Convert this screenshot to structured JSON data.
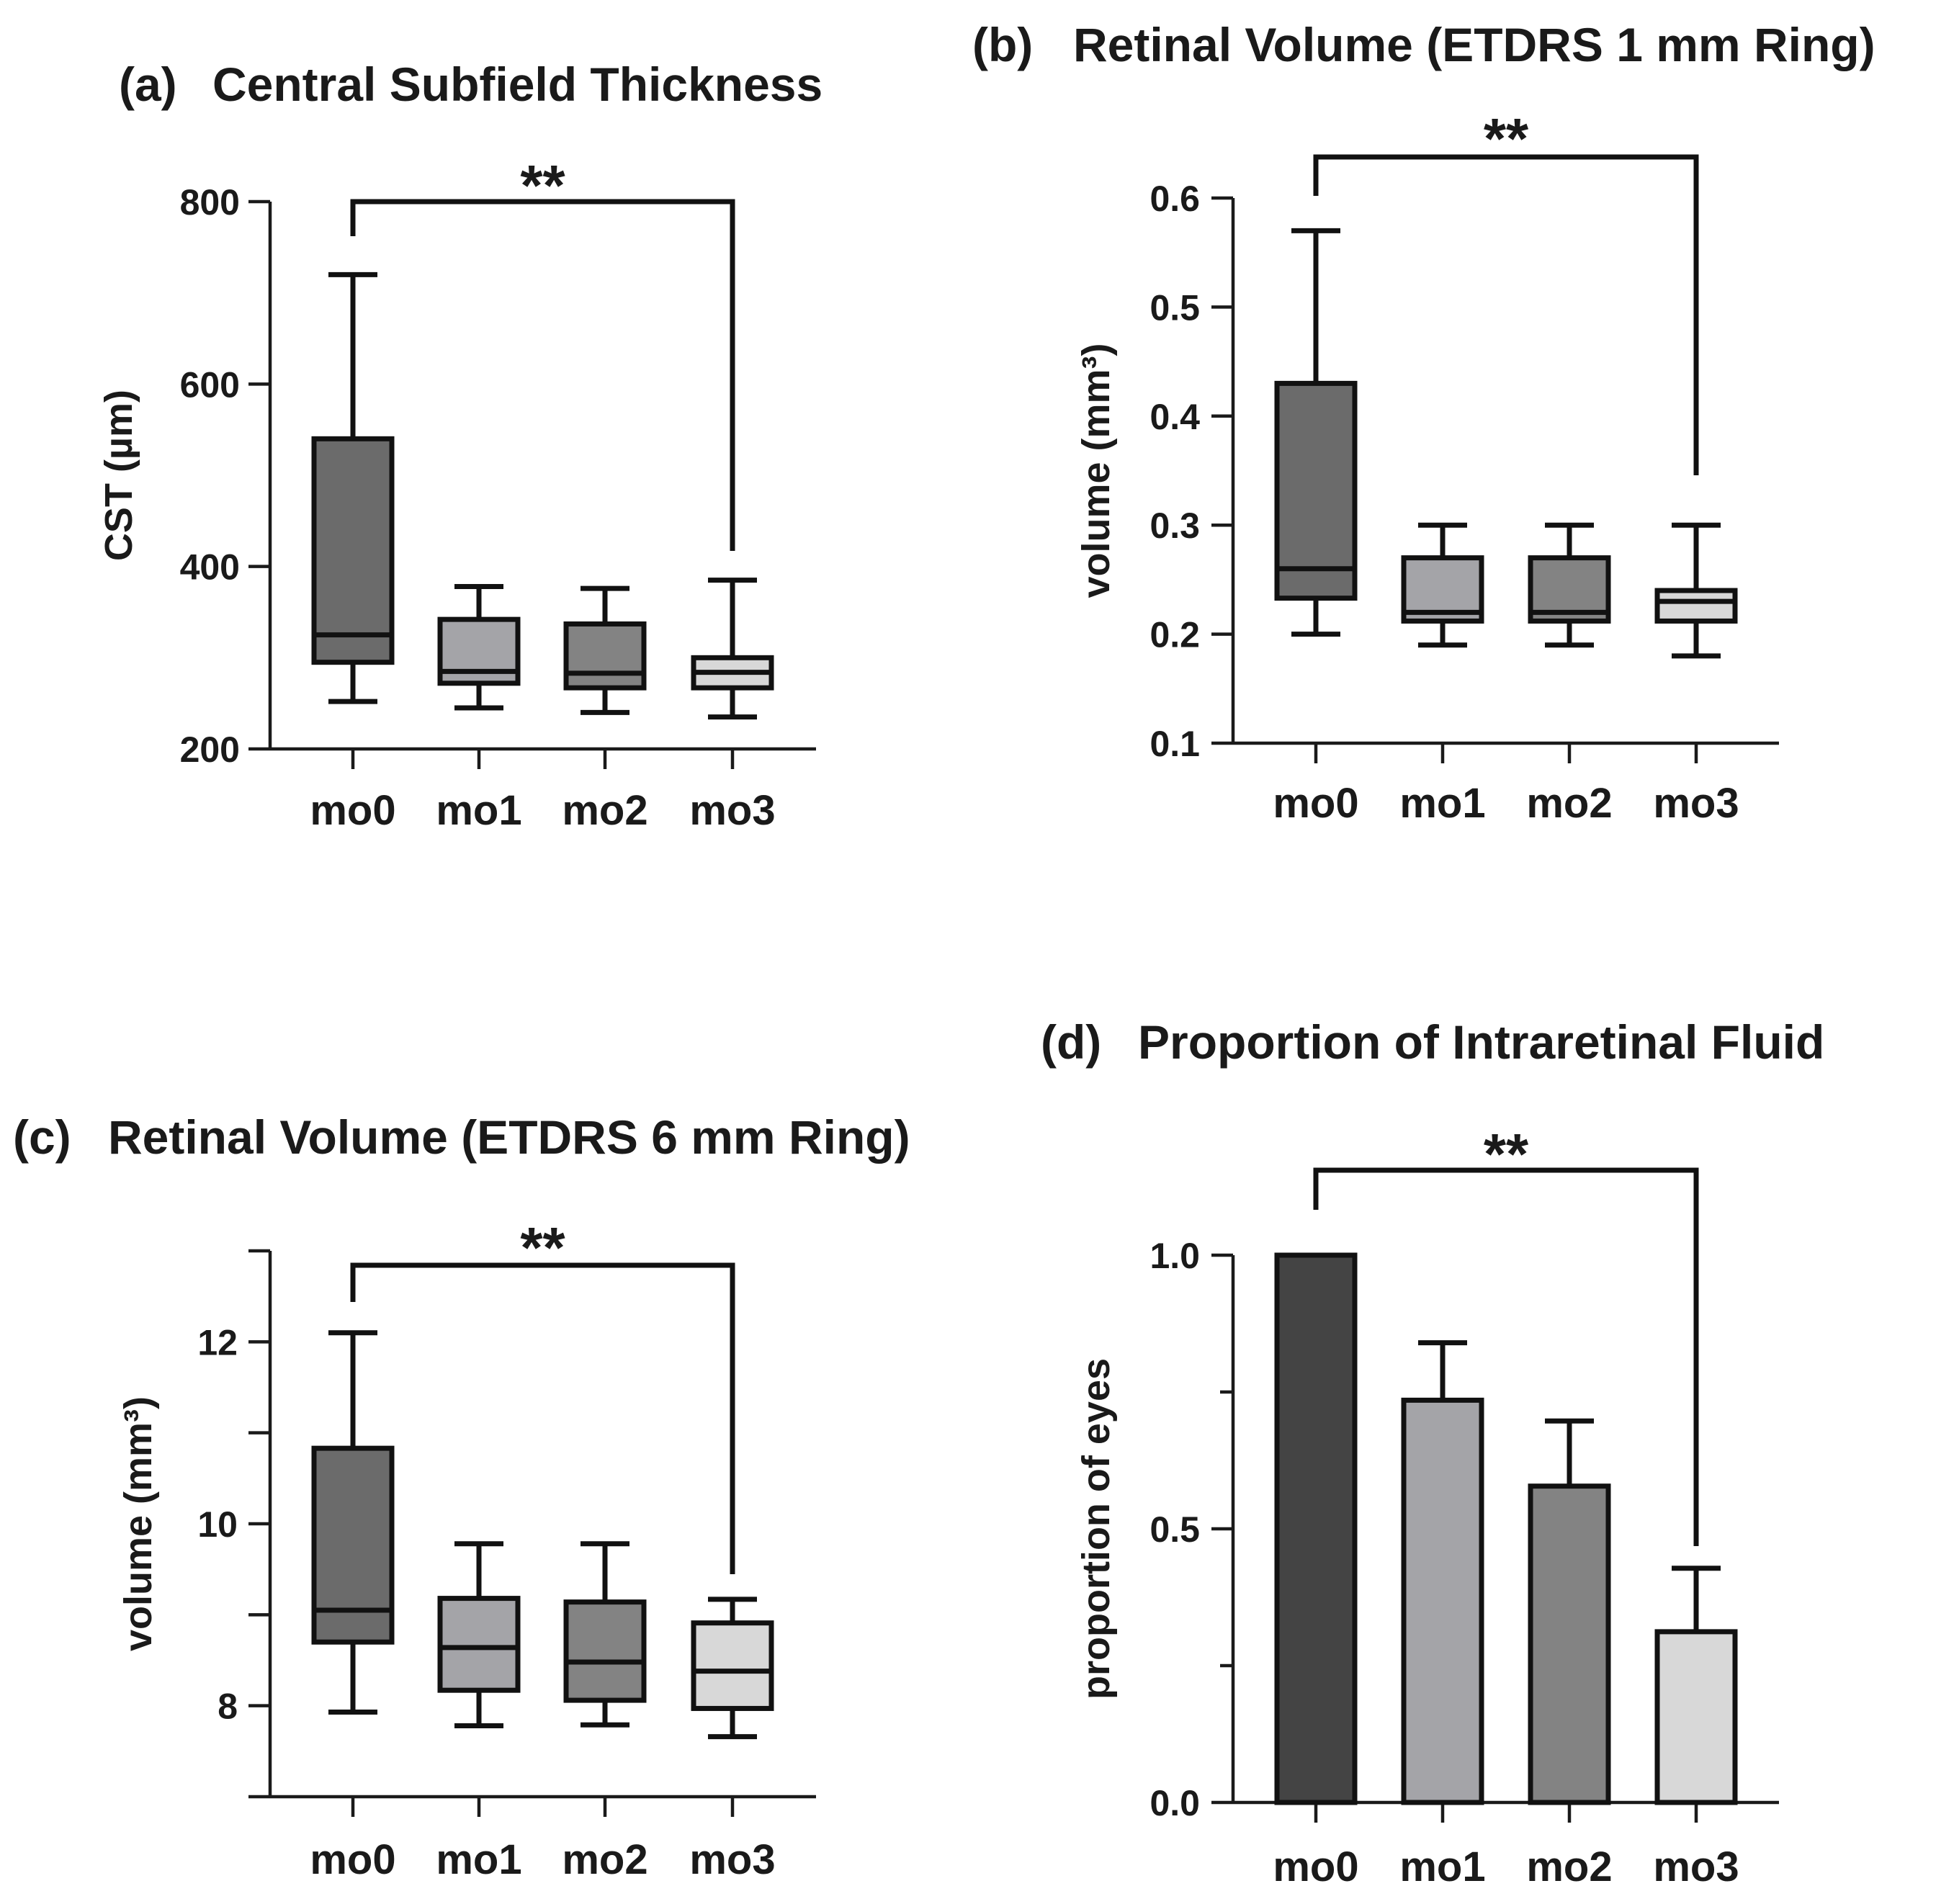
{
  "chart_data": [
    {
      "id": "a",
      "type": "box",
      "panel_label": "(a)",
      "title": "Central Subfield Thickness",
      "xlabel": "",
      "ylabel": "CST (µm)",
      "ylim": [
        200,
        800
      ],
      "yticks": [
        200,
        400,
        600,
        800
      ],
      "ytick_labels": [
        "200",
        "400",
        "600",
        "800"
      ],
      "categories": [
        "mo0",
        "mo1",
        "mo2",
        "mo3"
      ],
      "boxes": [
        {
          "min": 252,
          "q1": 295,
          "median": 325,
          "q3": 540,
          "max": 720
        },
        {
          "min": 245,
          "q1": 272,
          "median": 285,
          "q3": 342,
          "max": 378
        },
        {
          "min": 240,
          "q1": 267,
          "median": 283,
          "q3": 337,
          "max": 376
        },
        {
          "min": 235,
          "q1": 267,
          "median": 284,
          "q3": 300,
          "max": 385
        }
      ],
      "colors": [
        "#6b6b6b",
        "#a4a4a8",
        "#838383",
        "#d8d8d8"
      ],
      "significance": {
        "label": "**",
        "from": "mo0",
        "to": "mo3"
      }
    },
    {
      "id": "b",
      "type": "box",
      "panel_label": "(b)",
      "title": "Retinal Volume (ETDRS 1 mm Ring)",
      "xlabel": "",
      "ylabel": "volume (mm³)",
      "ylim": [
        0.1,
        0.6
      ],
      "yticks": [
        0.1,
        0.2,
        0.3,
        0.4,
        0.5,
        0.6
      ],
      "ytick_labels": [
        "0.1",
        "0.2",
        "0.3",
        "0.4",
        "0.5",
        "0.6"
      ],
      "categories": [
        "mo0",
        "mo1",
        "mo2",
        "mo3"
      ],
      "boxes": [
        {
          "min": 0.2,
          "q1": 0.233,
          "median": 0.26,
          "q3": 0.43,
          "max": 0.57
        },
        {
          "min": 0.19,
          "q1": 0.212,
          "median": 0.22,
          "q3": 0.27,
          "max": 0.3
        },
        {
          "min": 0.19,
          "q1": 0.212,
          "median": 0.22,
          "q3": 0.27,
          "max": 0.3
        },
        {
          "min": 0.18,
          "q1": 0.212,
          "median": 0.23,
          "q3": 0.24,
          "max": 0.3
        }
      ],
      "colors": [
        "#6b6b6b",
        "#a4a4a8",
        "#838383",
        "#d8d8d8"
      ],
      "significance": {
        "label": "**",
        "from": "mo0",
        "to": "mo3"
      }
    },
    {
      "id": "c",
      "type": "box",
      "panel_label": "(c)",
      "title": "Retinal Volume (ETDRS 6 mm Ring)",
      "xlabel": "",
      "ylabel": "volume (mm³)",
      "ylim": [
        7,
        13
      ],
      "yticks": [
        7,
        8,
        9,
        10,
        11,
        12,
        13
      ],
      "ytick_labels": [
        "",
        "8",
        "",
        "10",
        "",
        "12",
        ""
      ],
      "categories": [
        "mo0",
        "mo1",
        "mo2",
        "mo3"
      ],
      "boxes": [
        {
          "min": 7.93,
          "q1": 8.7,
          "median": 9.05,
          "q3": 10.83,
          "max": 12.1
        },
        {
          "min": 7.78,
          "q1": 8.17,
          "median": 8.64,
          "q3": 9.18,
          "max": 9.78
        },
        {
          "min": 7.79,
          "q1": 8.06,
          "median": 8.48,
          "q3": 9.14,
          "max": 9.78
        },
        {
          "min": 7.66,
          "q1": 7.97,
          "median": 8.38,
          "q3": 8.91,
          "max": 9.17
        }
      ],
      "colors": [
        "#6b6b6b",
        "#a4a4a8",
        "#838383",
        "#d8d8d8"
      ],
      "significance": {
        "label": "**",
        "from": "mo0",
        "to": "mo3"
      }
    },
    {
      "id": "d",
      "type": "bar",
      "panel_label": "(d)",
      "title": "Proportion of Intraretinal Fluid",
      "xlabel": "",
      "ylabel": "proportion of eyes",
      "ylim": [
        0,
        1.0
      ],
      "yticks": [
        0,
        0.5,
        1.0
      ],
      "ytick_labels": [
        "0.0",
        "0.5",
        "1.0"
      ],
      "minor_yticks": [
        0.25,
        0.75
      ],
      "categories": [
        "mo0",
        "mo1",
        "mo2",
        "mo3"
      ],
      "values": [
        1.0,
        0.735,
        0.578,
        0.312
      ],
      "error_upper": [
        1.0,
        0.84,
        0.697,
        0.428
      ],
      "colors": [
        "#444444",
        "#a4a4a8",
        "#838383",
        "#d8d8d8"
      ],
      "significance": {
        "label": "**",
        "from": "mo0",
        "to": "mo3"
      }
    }
  ]
}
